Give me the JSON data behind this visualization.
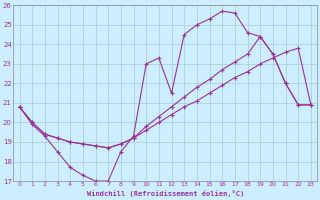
{
  "xlabel": "Windchill (Refroidissement éolien,°C)",
  "xlim": [
    -0.5,
    23.5
  ],
  "ylim": [
    17,
    26
  ],
  "xticks": [
    0,
    1,
    2,
    3,
    4,
    5,
    6,
    7,
    8,
    9,
    10,
    11,
    12,
    13,
    14,
    15,
    16,
    17,
    18,
    19,
    20,
    21,
    22,
    23
  ],
  "yticks": [
    17,
    18,
    19,
    20,
    21,
    22,
    23,
    24,
    25,
    26
  ],
  "bg_color": "#cceeff",
  "line_color": "#993399",
  "grid_color": "#aacccc",
  "line1_x": [
    0,
    1,
    2,
    3,
    4,
    5,
    6,
    7,
    8,
    9,
    10,
    11,
    12,
    13,
    14,
    15,
    16,
    17,
    18,
    19,
    20,
    21,
    22,
    23
  ],
  "line1_y": [
    20.8,
    19.9,
    19.3,
    18.5,
    17.7,
    17.3,
    17.0,
    17.0,
    18.5,
    19.3,
    23.0,
    23.3,
    21.5,
    24.5,
    25.0,
    25.3,
    25.7,
    25.6,
    24.6,
    24.4,
    23.5,
    22.0,
    20.9,
    20.9
  ],
  "line2_x": [
    0,
    1,
    2,
    3,
    4,
    5,
    6,
    7,
    8,
    9,
    10,
    11,
    12,
    13,
    14,
    15,
    16,
    17,
    18,
    19,
    20,
    21,
    22,
    23
  ],
  "line2_y": [
    20.8,
    20.0,
    19.4,
    19.2,
    19.0,
    18.9,
    18.8,
    18.7,
    18.9,
    19.2,
    19.6,
    20.0,
    20.4,
    20.8,
    21.1,
    21.5,
    21.9,
    22.3,
    22.6,
    23.0,
    23.3,
    23.6,
    23.8,
    20.9
  ],
  "line3_x": [
    0,
    1,
    2,
    3,
    4,
    5,
    6,
    7,
    8,
    9,
    10,
    11,
    12,
    13,
    14,
    15,
    16,
    17,
    18,
    19,
    20,
    21,
    22,
    23
  ],
  "line3_y": [
    20.8,
    20.0,
    19.4,
    19.2,
    19.0,
    18.9,
    18.8,
    18.7,
    18.9,
    19.2,
    19.8,
    20.3,
    20.8,
    21.3,
    21.8,
    22.2,
    22.7,
    23.1,
    23.5,
    24.4,
    23.5,
    22.0,
    20.9,
    20.9
  ]
}
